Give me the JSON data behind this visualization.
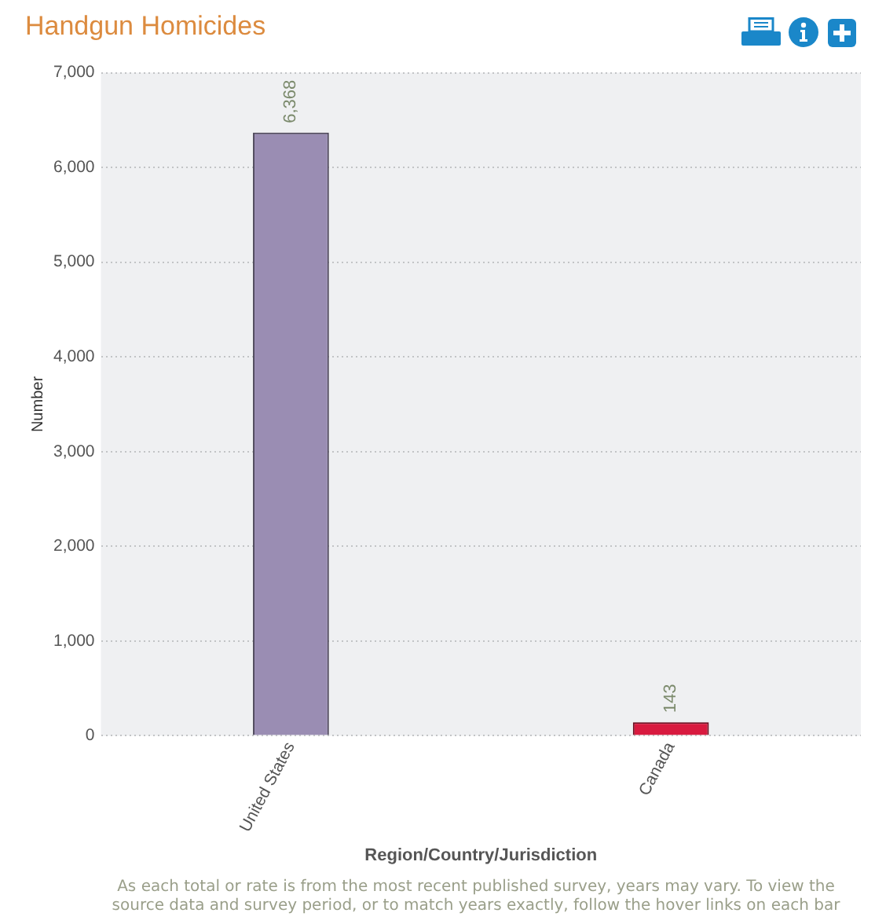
{
  "chart_data": {
    "type": "bar",
    "title": "Handgun Homicides",
    "xlabel": "Region/Country/Jurisdiction",
    "ylabel": "Number",
    "categories": [
      "United States",
      "Canada"
    ],
    "values": [
      6368,
      143
    ],
    "value_labels": [
      "6,368",
      "143"
    ],
    "colors": [
      "#9a8db3",
      "#d81a3f"
    ],
    "ylim": [
      0,
      7000
    ],
    "yticks": [
      0,
      {
        "value": 1000,
        "label": "1,000"
      },
      {
        "value": 2000,
        "label": "2,000"
      },
      {
        "value": 3000,
        "label": "3,000"
      },
      {
        "value": 4000,
        "label": "4,000"
      },
      {
        "value": 5000,
        "label": "5,000"
      },
      {
        "value": 6000,
        "label": "6,000"
      },
      {
        "value": 7000,
        "label": "7,000"
      }
    ],
    "grid": "y",
    "annotations": [
      "As each total or rate is from the most recent published survey, years may vary. To view the source data and survey period, or to match years exactly, follow the hover links on each bar"
    ]
  }
}
